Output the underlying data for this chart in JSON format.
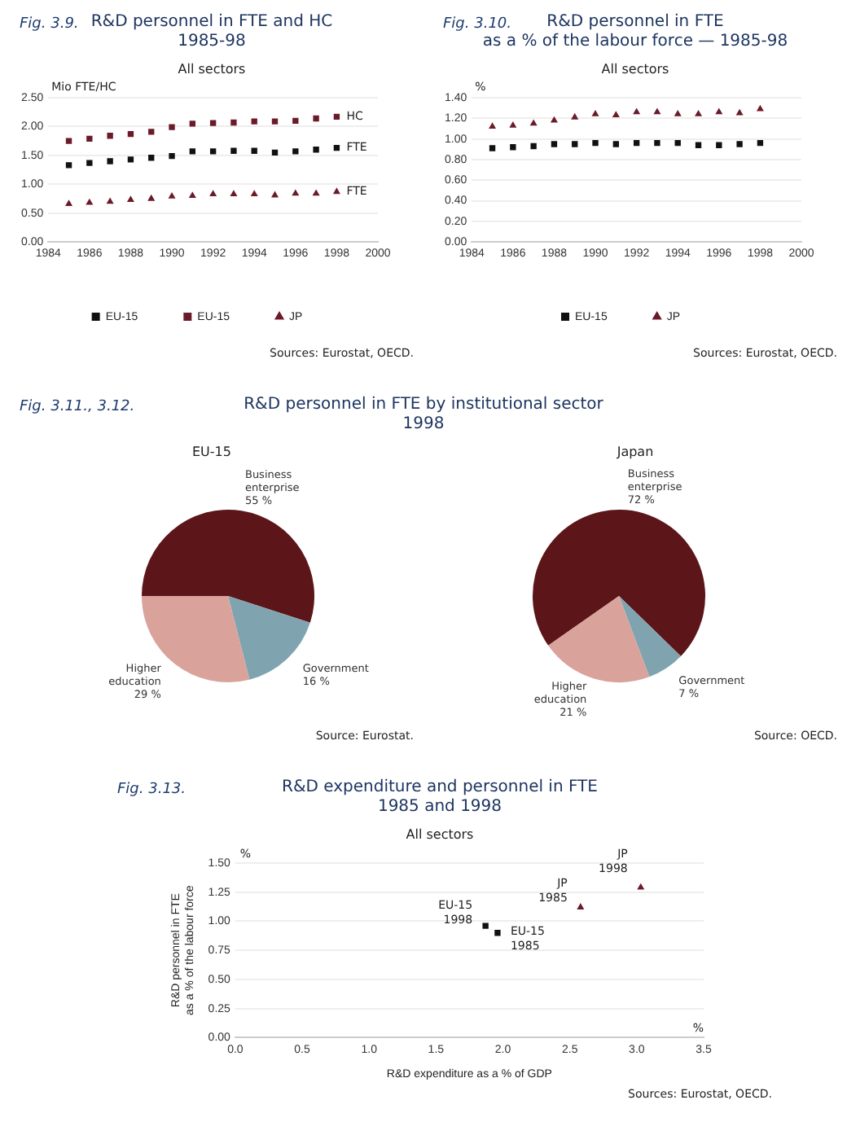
{
  "chart_data": [
    {
      "type": "scatter",
      "title": "R&D personnel in FTE and HC\n1985-98",
      "subtitle": "All sectors",
      "ylabel": "Mio FTE/HC",
      "x": [
        1985,
        1986,
        1987,
        1988,
        1989,
        1990,
        1991,
        1992,
        1993,
        1994,
        1995,
        1996,
        1997,
        1998
      ],
      "series": [
        {
          "name": "EU-15",
          "color": "#111111",
          "marker": "square",
          "values": [
            1.33,
            1.37,
            1.4,
            1.43,
            1.46,
            1.49,
            1.57,
            1.57,
            1.58,
            1.58,
            1.55,
            1.57,
            1.6,
            1.63
          ]
        },
        {
          "name": "EU-15",
          "color": "#6b1a2a",
          "marker": "square",
          "values": [
            1.75,
            1.79,
            1.84,
            1.87,
            1.91,
            1.99,
            2.05,
            2.06,
            2.07,
            2.09,
            2.09,
            2.1,
            2.14,
            2.17
          ]
        },
        {
          "name": "JP",
          "color": "#6b1a2a",
          "marker": "triangle",
          "values": [
            0.66,
            0.68,
            0.7,
            0.73,
            0.75,
            0.79,
            0.8,
            0.83,
            0.83,
            0.83,
            0.81,
            0.84,
            0.84,
            0.87
          ]
        }
      ],
      "xlim": [
        1984,
        2000
      ],
      "xticks": [
        1984,
        1986,
        1988,
        1990,
        1992,
        1994,
        1996,
        1998,
        2000
      ],
      "ylim": [
        0,
        2.5
      ],
      "yticks": [
        {
          "value": 0,
          "label": "0.00"
        },
        {
          "value": 0.5,
          "label": "0.50"
        },
        {
          "value": 1,
          "label": "1.00"
        },
        {
          "value": 1.5,
          "label": "1.50"
        },
        {
          "value": 2,
          "label": "2.00"
        },
        {
          "value": 2.5,
          "label": "2.50"
        }
      ],
      "grid": "y",
      "legend": "bottom",
      "annotations": [
        "Fig. 3.9.",
        {
          "text": "HC",
          "x": 1998,
          "y": 2.17
        },
        {
          "text": "FTE",
          "x": 1998,
          "y": 1.63
        },
        {
          "text": "FTE",
          "x": 1998,
          "y": 0.87
        },
        "Sources: Eurostat, OECD."
      ]
    },
    {
      "type": "scatter",
      "title": "R&D personnel in FTE\nas a % of the labour force — 1985-98",
      "subtitle": "All sectors",
      "ylabel": "%",
      "x": [
        1985,
        1986,
        1987,
        1988,
        1989,
        1990,
        1991,
        1992,
        1993,
        1994,
        1995,
        1996,
        1997,
        1998
      ],
      "series": [
        {
          "name": "EU-15",
          "color": "#111111",
          "marker": "square",
          "values": [
            0.91,
            0.92,
            0.93,
            0.95,
            0.95,
            0.96,
            0.95,
            0.96,
            0.96,
            0.96,
            0.94,
            0.94,
            0.95,
            0.96
          ]
        },
        {
          "name": "JP",
          "color": "#6b1a2a",
          "marker": "triangle",
          "values": [
            1.12,
            1.13,
            1.15,
            1.18,
            1.21,
            1.24,
            1.23,
            1.26,
            1.26,
            1.24,
            1.24,
            1.26,
            1.25,
            1.29
          ]
        }
      ],
      "xlim": [
        1984,
        2000
      ],
      "xticks": [
        1984,
        1986,
        1988,
        1990,
        1992,
        1994,
        1996,
        1998,
        2000
      ],
      "ylim": [
        0,
        1.4
      ],
      "yticks": [
        {
          "value": 0,
          "label": "0.00"
        },
        {
          "value": 0.2,
          "label": "0.20"
        },
        {
          "value": 0.4,
          "label": "0.40"
        },
        {
          "value": 0.6,
          "label": "0.60"
        },
        {
          "value": 0.8,
          "label": "0.80"
        },
        {
          "value": 1,
          "label": "1.00"
        },
        {
          "value": 1.2,
          "label": "1.20"
        },
        {
          "value": 1.4,
          "label": "1.40"
        }
      ],
      "grid": "y",
      "legend": "bottom",
      "annotations": [
        "Fig. 3.10.",
        "Sources: Eurostat, OECD."
      ]
    },
    {
      "type": "pie",
      "title": "R&D personnel in FTE by institutional sector\n1998",
      "subtitle": "EU-15",
      "categories": [
        "Business enterprise",
        "Government",
        "Higher education"
      ],
      "values": [
        55,
        16,
        29
      ],
      "colors": [
        "#5c1518",
        "#7fa4b0",
        "#d9a39b"
      ],
      "value_labels": [
        "55 %",
        "16 %",
        "29 %"
      ],
      "annotations": [
        "Fig. 3.11., 3.12.",
        "Source: Eurostat."
      ]
    },
    {
      "type": "pie",
      "subtitle": "Japan",
      "categories": [
        "Business enterprise",
        "Government",
        "Higher education"
      ],
      "values": [
        72,
        7,
        21
      ],
      "colors": [
        "#5c1518",
        "#7fa4b0",
        "#d9a39b"
      ],
      "value_labels": [
        "72 %",
        "7 %",
        "21 %"
      ],
      "annotations": [
        "Source: OECD."
      ]
    },
    {
      "type": "scatter",
      "title": "R&D expenditure and personnel in FTE\n1985 and 1998",
      "subtitle": "All sectors",
      "xlabel": "R&D expenditure as a % of GDP",
      "ylabel": "R&D personnel in FTE\nas a % of the labour force",
      "series": [
        {
          "color": "#111111",
          "marker": "square",
          "x": [
            1.87,
            1.96
          ],
          "values": [
            0.96,
            0.9
          ]
        },
        {
          "color": "#6b1a2a",
          "marker": "triangle",
          "x": [
            2.58,
            3.03
          ],
          "values": [
            1.12,
            1.29
          ]
        }
      ],
      "xlim": [
        0,
        3.5
      ],
      "xticks": [
        {
          "value": 0,
          "label": "0.0"
        },
        {
          "value": 0.5,
          "label": "0.5"
        },
        {
          "value": 1,
          "label": "1.0"
        },
        {
          "value": 1.5,
          "label": "1.5"
        },
        {
          "value": 2,
          "label": "2.0"
        },
        {
          "value": 2.5,
          "label": "2.5"
        },
        {
          "value": 3,
          "label": "3.0"
        },
        {
          "value": 3.5,
          "label": "3.5"
        }
      ],
      "ylim": [
        0,
        1.5
      ],
      "yticks": [
        {
          "value": 0,
          "label": "0.00"
        },
        {
          "value": 0.25,
          "label": "0.25"
        },
        {
          "value": 0.5,
          "label": "0.50"
        },
        {
          "value": 0.75,
          "label": "0.75"
        },
        {
          "value": 1,
          "label": "1.00"
        },
        {
          "value": 1.25,
          "label": "1.25"
        },
        {
          "value": 1.5,
          "label": "1.50"
        }
      ],
      "grid": "y",
      "annotations": [
        "Fig. 3.13.",
        {
          "text": "EU-15\n1998",
          "x": 1.87,
          "y": 0.96
        },
        {
          "text": "EU-15\n1985",
          "x": 1.96,
          "y": 0.9
        },
        {
          "text": "JP\n1985",
          "x": 2.58,
          "y": 1.12
        },
        {
          "text": "JP\n1998",
          "x": 3.03,
          "y": 1.29
        },
        "%",
        "%",
        "Sources: Eurostat, OECD."
      ]
    }
  ]
}
